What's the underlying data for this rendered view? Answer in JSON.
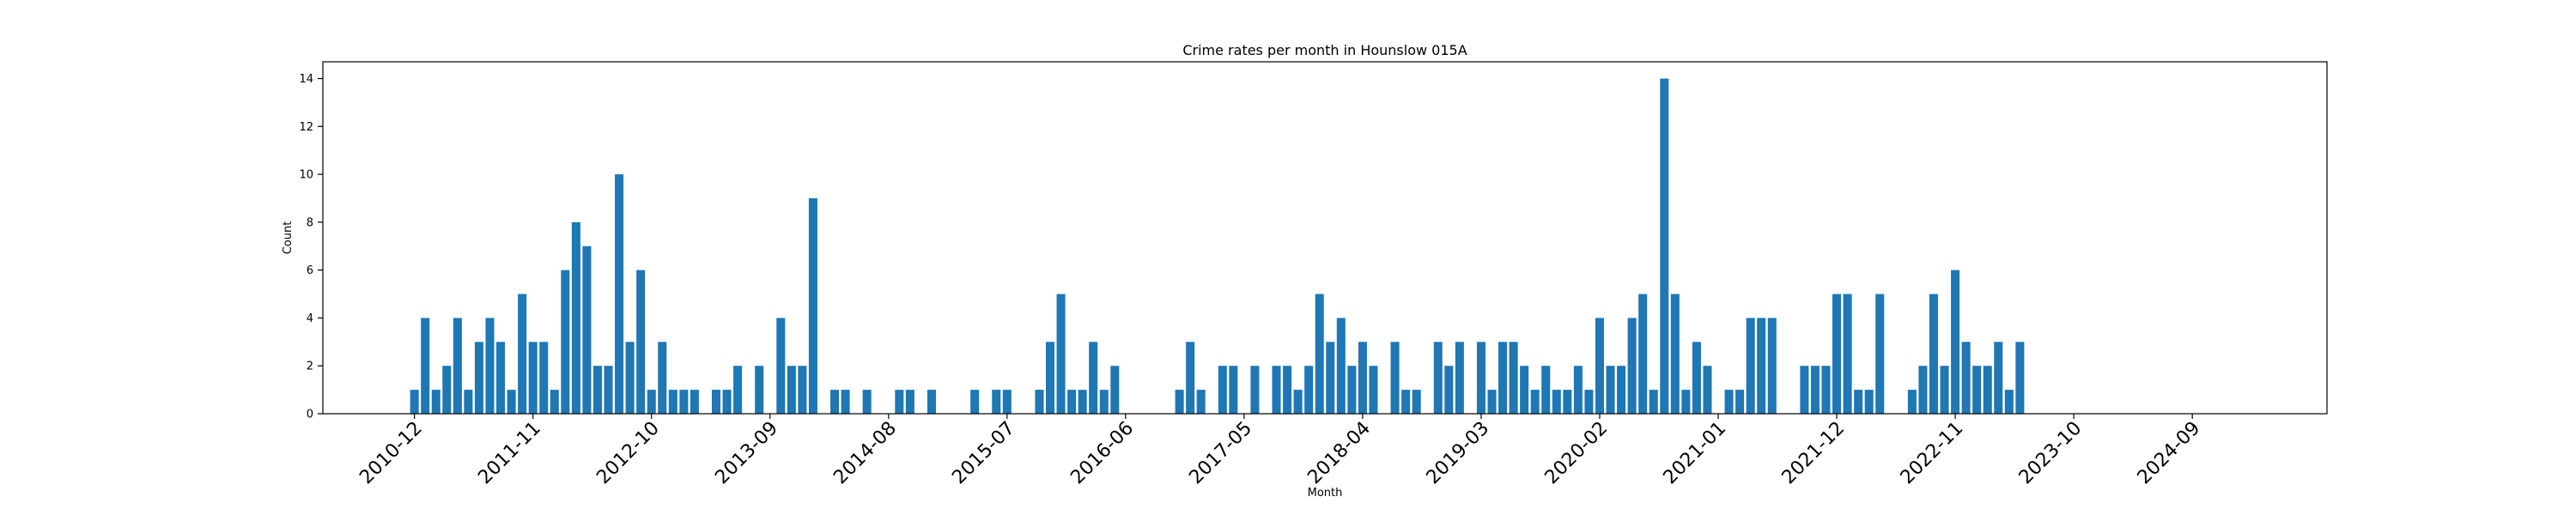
{
  "chart_data": {
    "type": "bar",
    "title": "Crime rates per month in Hounslow 015A",
    "xlabel": "Month",
    "ylabel": "Count",
    "ylim": [
      0,
      14.7
    ],
    "yticks": [
      0,
      2,
      4,
      6,
      8,
      10,
      12,
      14
    ],
    "xlim": [
      -8.5,
      177.5
    ],
    "xtick_labels": [
      "2010-12",
      "2011-11",
      "2012-10",
      "2013-09",
      "2014-08",
      "2015-07",
      "2016-06",
      "2017-05",
      "2018-04",
      "2019-03",
      "2020-02",
      "2021-01",
      "2021-12",
      "2022-11",
      "2023-10",
      "2024-09"
    ],
    "xtick_positions": [
      0,
      11,
      22,
      33,
      44,
      55,
      66,
      77,
      88,
      99,
      110,
      121,
      132,
      143,
      154,
      165
    ],
    "bar_color": "#1f77b4",
    "grid": false,
    "legend": false,
    "bars": [
      {
        "month": "2010-12",
        "value": 1
      },
      {
        "month": "2011-01",
        "value": 4
      },
      {
        "month": "2011-02",
        "value": 1
      },
      {
        "month": "2011-03",
        "value": 2
      },
      {
        "month": "2011-04",
        "value": 4
      },
      {
        "month": "2011-05",
        "value": 1
      },
      {
        "month": "2011-06",
        "value": 3
      },
      {
        "month": "2011-07",
        "value": 4
      },
      {
        "month": "2011-08",
        "value": 3
      },
      {
        "month": "2011-09",
        "value": 1
      },
      {
        "month": "2011-10",
        "value": 5
      },
      {
        "month": "2011-11",
        "value": 3
      },
      {
        "month": "2011-12",
        "value": 3
      },
      {
        "month": "2012-01",
        "value": 1
      },
      {
        "month": "2012-02",
        "value": 6
      },
      {
        "month": "2012-03",
        "value": 8
      },
      {
        "month": "2012-04",
        "value": 7
      },
      {
        "month": "2012-05",
        "value": 2
      },
      {
        "month": "2012-06",
        "value": 2
      },
      {
        "month": "2012-07",
        "value": 10
      },
      {
        "month": "2012-08",
        "value": 3
      },
      {
        "month": "2012-09",
        "value": 6
      },
      {
        "month": "2012-10",
        "value": 1
      },
      {
        "month": "2012-11",
        "value": 3
      },
      {
        "month": "2012-12",
        "value": 1
      },
      {
        "month": "2013-01",
        "value": 1
      },
      {
        "month": "2013-02",
        "value": 1
      },
      {
        "month": "2013-04",
        "value": 1
      },
      {
        "month": "2013-05",
        "value": 1
      },
      {
        "month": "2013-06",
        "value": 2
      },
      {
        "month": "2013-08",
        "value": 2
      },
      {
        "month": "2013-10",
        "value": 4
      },
      {
        "month": "2013-11",
        "value": 2
      },
      {
        "month": "2013-12",
        "value": 2
      },
      {
        "month": "2014-01",
        "value": 9
      },
      {
        "month": "2014-03",
        "value": 1
      },
      {
        "month": "2014-04",
        "value": 1
      },
      {
        "month": "2014-06",
        "value": 1
      },
      {
        "month": "2014-09",
        "value": 1
      },
      {
        "month": "2014-10",
        "value": 1
      },
      {
        "month": "2014-12",
        "value": 1
      },
      {
        "month": "2015-04",
        "value": 1
      },
      {
        "month": "2015-06",
        "value": 1
      },
      {
        "month": "2015-07",
        "value": 1
      },
      {
        "month": "2015-10",
        "value": 1
      },
      {
        "month": "2015-11",
        "value": 3
      },
      {
        "month": "2015-12",
        "value": 5
      },
      {
        "month": "2016-01",
        "value": 1
      },
      {
        "month": "2016-02",
        "value": 1
      },
      {
        "month": "2016-03",
        "value": 3
      },
      {
        "month": "2016-04",
        "value": 1
      },
      {
        "month": "2016-05",
        "value": 2
      },
      {
        "month": "2016-11",
        "value": 1
      },
      {
        "month": "2016-12",
        "value": 3
      },
      {
        "month": "2017-01",
        "value": 1
      },
      {
        "month": "2017-03",
        "value": 2
      },
      {
        "month": "2017-04",
        "value": 2
      },
      {
        "month": "2017-06",
        "value": 2
      },
      {
        "month": "2017-08",
        "value": 2
      },
      {
        "month": "2017-09",
        "value": 2
      },
      {
        "month": "2017-10",
        "value": 1
      },
      {
        "month": "2017-11",
        "value": 2
      },
      {
        "month": "2017-12",
        "value": 5
      },
      {
        "month": "2018-01",
        "value": 3
      },
      {
        "month": "2018-02",
        "value": 4
      },
      {
        "month": "2018-03",
        "value": 2
      },
      {
        "month": "2018-04",
        "value": 3
      },
      {
        "month": "2018-05",
        "value": 2
      },
      {
        "month": "2018-07",
        "value": 3
      },
      {
        "month": "2018-08",
        "value": 1
      },
      {
        "month": "2018-09",
        "value": 1
      },
      {
        "month": "2018-11",
        "value": 3
      },
      {
        "month": "2018-12",
        "value": 2
      },
      {
        "month": "2019-01",
        "value": 3
      },
      {
        "month": "2019-03",
        "value": 3
      },
      {
        "month": "2019-04",
        "value": 1
      },
      {
        "month": "2019-05",
        "value": 3
      },
      {
        "month": "2019-06",
        "value": 3
      },
      {
        "month": "2019-07",
        "value": 2
      },
      {
        "month": "2019-08",
        "value": 1
      },
      {
        "month": "2019-09",
        "value": 2
      },
      {
        "month": "2019-10",
        "value": 1
      },
      {
        "month": "2019-11",
        "value": 1
      },
      {
        "month": "2019-12",
        "value": 2
      },
      {
        "month": "2020-01",
        "value": 1
      },
      {
        "month": "2020-02",
        "value": 4
      },
      {
        "month": "2020-03",
        "value": 2
      },
      {
        "month": "2020-04",
        "value": 2
      },
      {
        "month": "2020-05",
        "value": 4
      },
      {
        "month": "2020-06",
        "value": 5
      },
      {
        "month": "2020-07",
        "value": 1
      },
      {
        "month": "2020-08",
        "value": 14
      },
      {
        "month": "2020-09",
        "value": 5
      },
      {
        "month": "2020-10",
        "value": 1
      },
      {
        "month": "2020-11",
        "value": 3
      },
      {
        "month": "2020-12",
        "value": 2
      },
      {
        "month": "2021-02",
        "value": 1
      },
      {
        "month": "2021-03",
        "value": 1
      },
      {
        "month": "2021-04",
        "value": 4
      },
      {
        "month": "2021-05",
        "value": 4
      },
      {
        "month": "2021-06",
        "value": 4
      },
      {
        "month": "2021-09",
        "value": 2
      },
      {
        "month": "2021-10",
        "value": 2
      },
      {
        "month": "2021-11",
        "value": 2
      },
      {
        "month": "2021-12",
        "value": 5
      },
      {
        "month": "2022-01",
        "value": 5
      },
      {
        "month": "2022-02",
        "value": 1
      },
      {
        "month": "2022-03",
        "value": 1
      },
      {
        "month": "2022-04",
        "value": 5
      },
      {
        "month": "2022-07",
        "value": 1
      },
      {
        "month": "2022-08",
        "value": 2
      },
      {
        "month": "2022-09",
        "value": 5
      },
      {
        "month": "2022-10",
        "value": 2
      },
      {
        "month": "2022-11",
        "value": 6
      },
      {
        "month": "2022-12",
        "value": 3
      },
      {
        "month": "2023-01",
        "value": 2
      },
      {
        "month": "2023-02",
        "value": 2
      },
      {
        "month": "2023-03",
        "value": 3
      },
      {
        "month": "2023-04",
        "value": 1
      },
      {
        "month": "2023-05",
        "value": 3
      }
    ]
  }
}
